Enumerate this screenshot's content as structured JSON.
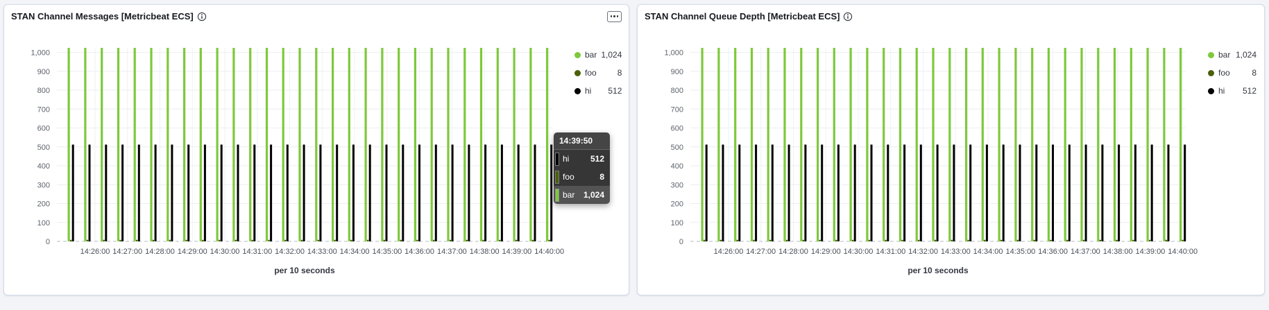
{
  "page": {
    "background_color": "#f2f4f8"
  },
  "panels": [
    {
      "title": "STAN Channel Messages [Metricbeat ECS]",
      "legend": [
        {
          "label": "bar",
          "value": "1,024",
          "color": "#7DC93B"
        },
        {
          "label": "foo",
          "value": "8",
          "color": "#4A6109"
        },
        {
          "label": "hi",
          "value": "512",
          "color": "#000000"
        }
      ],
      "axis_title": "per 10 seconds",
      "tooltip": {
        "time": "14:39:50",
        "rows": [
          {
            "label": "hi",
            "value": "512",
            "color": "#000000"
          },
          {
            "label": "foo",
            "value": "8",
            "color": "#4A6109"
          },
          {
            "label": "bar",
            "value": "1,024",
            "color": "#7DC93B"
          }
        ]
      }
    },
    {
      "title": "STAN Channel Queue Depth [Metricbeat ECS]",
      "legend": [
        {
          "label": "bar",
          "value": "1,024",
          "color": "#7DC93B"
        },
        {
          "label": "foo",
          "value": "8",
          "color": "#4A6109"
        },
        {
          "label": "hi",
          "value": "512",
          "color": "#000000"
        }
      ],
      "axis_title": "per 10 seconds"
    }
  ],
  "chart_data": [
    {
      "type": "bar",
      "title": "STAN Channel Messages [Metricbeat ECS]",
      "xlabel": "per 10 seconds",
      "ylabel": "",
      "ylim": [
        0,
        1024
      ],
      "y_ticks": [
        0,
        100,
        200,
        300,
        400,
        500,
        600,
        700,
        800,
        900,
        1000
      ],
      "x_tick_labels": [
        "14:26:00",
        "14:27:00",
        "14:28:00",
        "14:29:00",
        "14:30:00",
        "14:31:00",
        "14:32:00",
        "14:33:00",
        "14:34:00",
        "14:35:00",
        "14:36:00",
        "14:37:00",
        "14:38:00",
        "14:39:00",
        "14:40:00"
      ],
      "buckets": 30,
      "series": [
        {
          "name": "bar",
          "color": "#7DC93B",
          "value": 1024
        },
        {
          "name": "foo",
          "color": "#4A6109",
          "value": 8
        },
        {
          "name": "hi",
          "color": "#000000",
          "value": 512
        }
      ],
      "legend_position": "right",
      "grid": true
    },
    {
      "type": "bar",
      "title": "STAN Channel Queue Depth [Metricbeat ECS]",
      "xlabel": "per 10 seconds",
      "ylabel": "",
      "ylim": [
        0,
        1024
      ],
      "y_ticks": [
        0,
        100,
        200,
        300,
        400,
        500,
        600,
        700,
        800,
        900,
        1000
      ],
      "x_tick_labels": [
        "14:26:00",
        "14:27:00",
        "14:28:00",
        "14:29:00",
        "14:30:00",
        "14:31:00",
        "14:32:00",
        "14:33:00",
        "14:34:00",
        "14:35:00",
        "14:36:00",
        "14:37:00",
        "14:38:00",
        "14:39:00",
        "14:40:00"
      ],
      "buckets": 30,
      "series": [
        {
          "name": "bar",
          "color": "#7DC93B",
          "value": 1024
        },
        {
          "name": "foo",
          "color": "#4A6109",
          "value": 8
        },
        {
          "name": "hi",
          "color": "#000000",
          "value": 512
        }
      ],
      "legend_position": "right",
      "grid": true
    }
  ]
}
